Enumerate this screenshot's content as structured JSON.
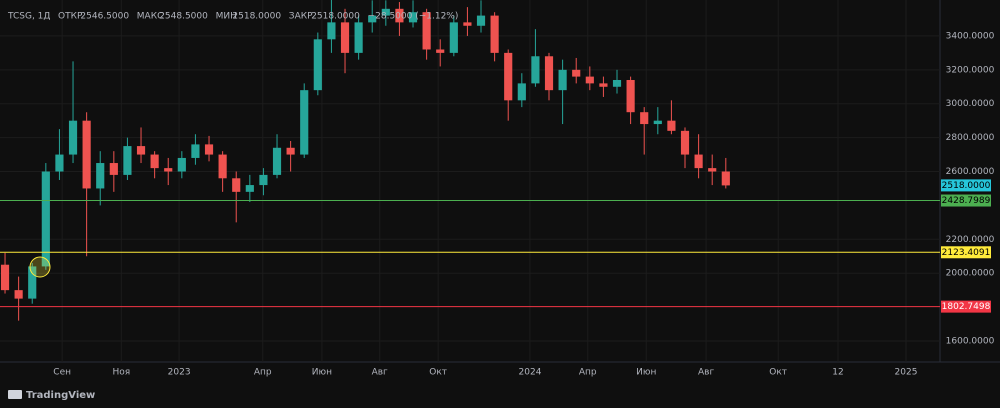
{
  "chart_data": {
    "type": "candlestick",
    "symbol": "TCSG, 1Д",
    "ohlc_header": [
      {
        "label": "ОТКР",
        "value": "2546.5000"
      },
      {
        "label": "МАКС",
        "value": "2548.5000"
      },
      {
        "label": "МИН",
        "value": "2518.0000"
      },
      {
        "label": "ЗАКР",
        "value": "2518.0000"
      }
    ],
    "change": "−28.5000 (−1.12%)",
    "branding": "TradingView",
    "up_color": "#26a69a",
    "down_color": "#ef5350",
    "grid": true,
    "x": [
      0,
      2,
      4,
      6,
      8,
      10,
      12,
      14,
      16,
      18,
      20,
      22,
      24,
      26,
      28,
      30,
      32,
      34,
      36,
      38,
      40,
      42,
      44,
      46,
      48,
      50,
      52,
      54,
      56,
      58,
      60,
      62,
      64,
      66,
      68,
      70,
      72,
      74,
      76,
      78,
      80,
      82,
      84,
      86,
      88,
      90,
      92,
      94,
      96,
      98,
      100,
      102,
      104,
      106
    ],
    "open": [
      2050,
      1900,
      1850,
      2040,
      2600,
      2700,
      2900,
      2500,
      2650,
      2580,
      2750,
      2700,
      2620,
      2600,
      2680,
      2760,
      2700,
      2560,
      2480,
      2520,
      2580,
      2740,
      2700,
      3080,
      3380,
      3480,
      3300,
      3480,
      3520,
      3560,
      3480,
      3540,
      3320,
      3300,
      3480,
      3460,
      3520,
      3300,
      3020,
      3120,
      3280,
      3080,
      3200,
      3160,
      3120,
      3100,
      3140,
      2950,
      2880,
      2900,
      2840,
      2700,
      2620,
      2600
    ],
    "high": [
      2120,
      1980,
      2060,
      2650,
      2850,
      3250,
      2950,
      2720,
      2720,
      2800,
      2860,
      2720,
      2680,
      2720,
      2820,
      2810,
      2720,
      2600,
      2580,
      2620,
      2820,
      2780,
      3120,
      3420,
      3620,
      3560,
      3520,
      3610,
      3610,
      3600,
      3610,
      3560,
      3380,
      3520,
      3570,
      3610,
      3540,
      3320,
      3180,
      3440,
      3300,
      3260,
      3270,
      3220,
      3160,
      3200,
      3160,
      2980,
      2980,
      3020,
      2860,
      2820,
      2700,
      2680
    ],
    "low": [
      1880,
      1720,
      1820,
      2020,
      2550,
      2650,
      2100,
      2400,
      2480,
      2550,
      2650,
      2560,
      2520,
      2560,
      2640,
      2660,
      2480,
      2300,
      2420,
      2460,
      2560,
      2600,
      2680,
      3050,
      3300,
      3180,
      3260,
      3420,
      3460,
      3400,
      3450,
      3260,
      3220,
      3280,
      3400,
      3420,
      3250,
      2900,
      2980,
      3100,
      3020,
      2880,
      3120,
      3080,
      3040,
      3060,
      2880,
      2700,
      2820,
      2820,
      2620,
      2560,
      2520,
      2500
    ],
    "close": [
      1900,
      1850,
      2040,
      2600,
      2700,
      2900,
      2500,
      2650,
      2580,
      2750,
      2700,
      2620,
      2600,
      2680,
      2760,
      2700,
      2560,
      2480,
      2520,
      2580,
      2740,
      2700,
      3080,
      3380,
      3480,
      3300,
      3480,
      3520,
      3560,
      3480,
      3540,
      3320,
      3300,
      3480,
      3460,
      3520,
      3300,
      3020,
      3120,
      3280,
      3080,
      3200,
      3160,
      3120,
      3100,
      3140,
      2950,
      2880,
      2900,
      2840,
      2700,
      2620,
      2600,
      2518
    ],
    "xlim": [
      -0.74,
      137.5
    ],
    "xticks": [
      {
        "value": 8.4,
        "label": "Сен"
      },
      {
        "value": 17.1,
        "label": "Ноя"
      },
      {
        "value": 25.6,
        "label": "2023"
      },
      {
        "value": 37.9,
        "label": "Апр"
      },
      {
        "value": 46.6,
        "label": "Июн"
      },
      {
        "value": 55.1,
        "label": "Авг"
      },
      {
        "value": 63.7,
        "label": "Окт"
      },
      {
        "value": 77.2,
        "label": "2024"
      },
      {
        "value": 85.7,
        "label": "Апр"
      },
      {
        "value": 94.3,
        "label": "Июн"
      },
      {
        "value": 103.1,
        "label": "Авг"
      },
      {
        "value": 113.7,
        "label": "Окт"
      },
      {
        "value": 122.5,
        "label": "12"
      },
      {
        "value": 132.5,
        "label": "2025"
      }
    ],
    "ylim": [
      1476,
      3612
    ],
    "yticks": [
      {
        "value": 1600,
        "label": "1600.0000"
      },
      {
        "value": 2000,
        "label": "2000.0000"
      },
      {
        "value": 2200,
        "label": "2200.0000"
      },
      {
        "value": 2600,
        "label": "2600.0000"
      },
      {
        "value": 2800,
        "label": "2800.0000"
      },
      {
        "value": 3000,
        "label": "3000.0000"
      },
      {
        "value": 3200,
        "label": "3200.0000"
      },
      {
        "value": 3400,
        "label": "3400.0000"
      }
    ],
    "price_lines": [
      {
        "value": 2518,
        "label": "2518.0000",
        "color": "#22ab94",
        "line": false,
        "text_color": "#000000",
        "label_color": "#26c6da"
      },
      {
        "value": 2428.7989,
        "label": "2428.7989",
        "color": "#4caf50",
        "line": true,
        "text_color": "#000000",
        "label_color": "#4caf50"
      },
      {
        "value": 2123.4091,
        "label": "2123.4091",
        "color": "#ffeb3b",
        "line": true,
        "text_color": "#000000",
        "label_color": "#ffeb3b"
      },
      {
        "value": 1802.7498,
        "label": "1802.7498",
        "color": "#f23645",
        "line": true,
        "text_color": "#ffffff",
        "label_color": "#f23645"
      }
    ]
  }
}
